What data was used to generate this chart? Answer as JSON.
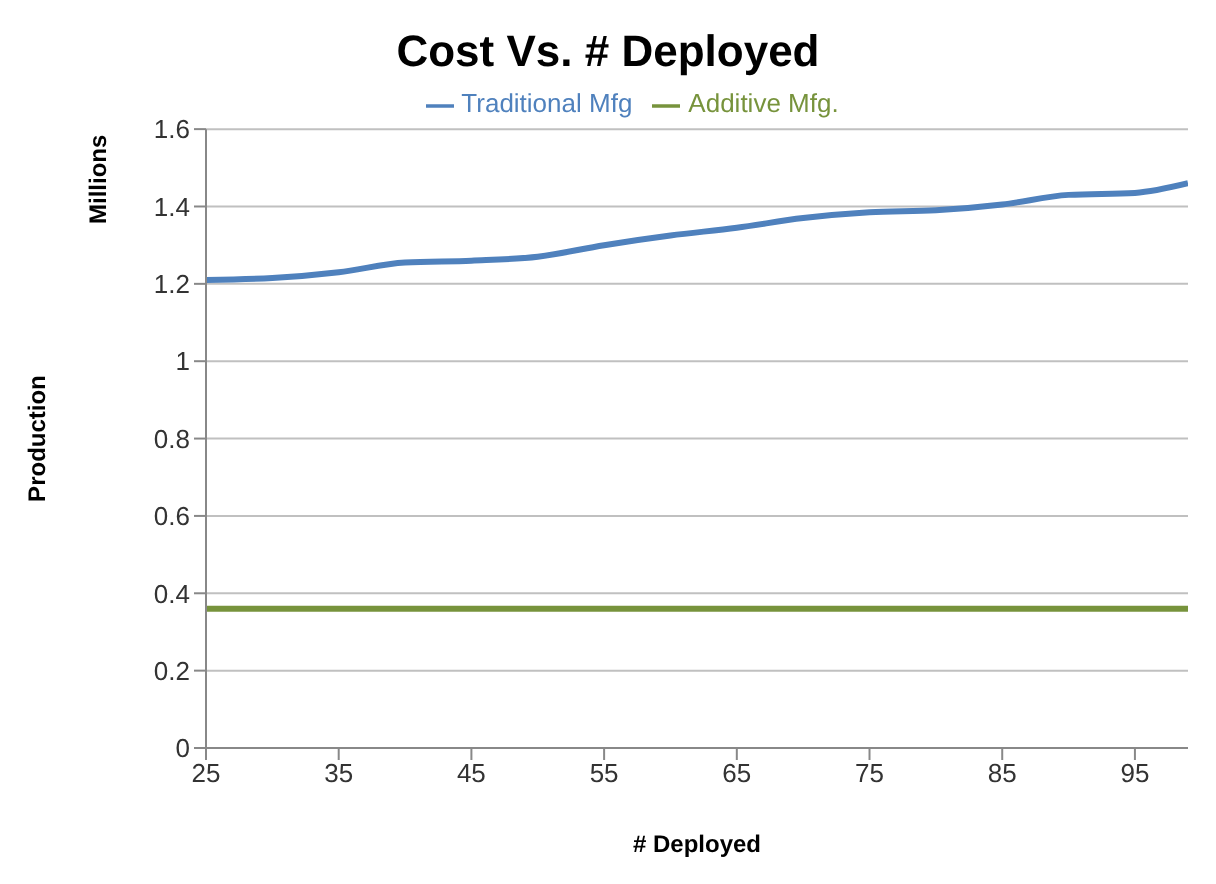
{
  "chart_data": {
    "type": "line",
    "title": "Cost Vs. # Deployed",
    "xlabel": "# Deployed",
    "ylabel": "Production",
    "annotations": [
      "Millions"
    ],
    "series": [
      {
        "name": "Traditional Mfg",
        "color": "#4f81bd",
        "x": [
          25,
          30,
          35,
          40,
          45,
          50,
          55,
          60,
          65,
          70,
          75,
          80,
          85,
          90,
          95,
          99
        ],
        "values": [
          1.21,
          1.215,
          1.23,
          1.255,
          1.26,
          1.27,
          1.3,
          1.325,
          1.345,
          1.37,
          1.385,
          1.39,
          1.405,
          1.43,
          1.435,
          1.46
        ]
      },
      {
        "name": "Additive Mfg.",
        "color": "#77933c",
        "x": [
          25,
          99
        ],
        "values": [
          0.36,
          0.36
        ]
      }
    ],
    "xlim": [
      25,
      99
    ],
    "xticks": [
      25,
      35,
      45,
      55,
      65,
      75,
      85,
      95
    ],
    "ylim": [
      0,
      1.6
    ],
    "yticks": [
      0,
      0.2,
      0.4,
      0.6,
      0.8,
      1,
      1.2,
      1.4,
      1.6
    ],
    "grid": "y",
    "legend": "top",
    "marker": "none",
    "line_style": "solid"
  }
}
